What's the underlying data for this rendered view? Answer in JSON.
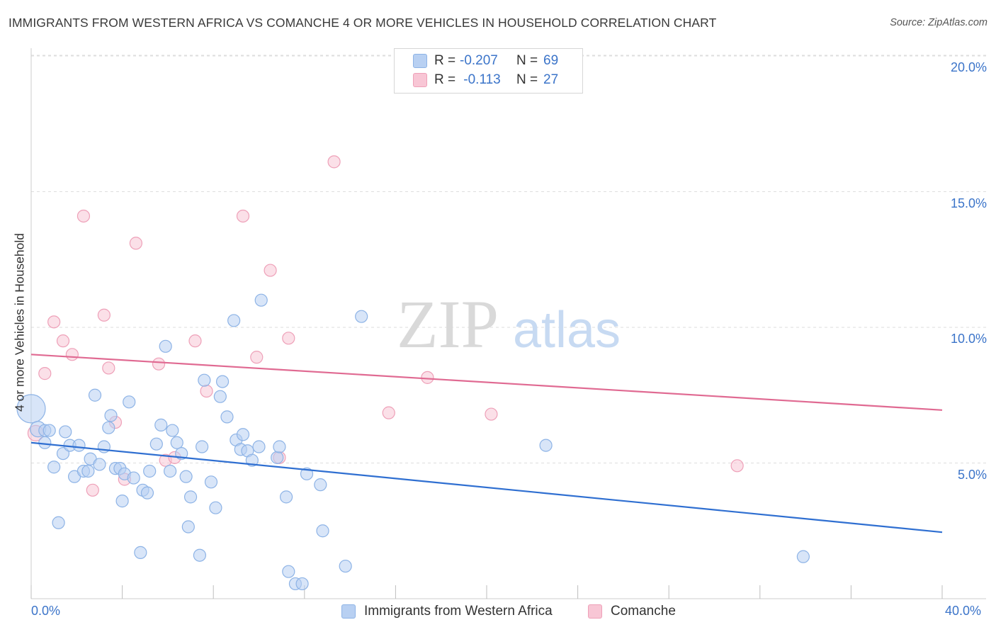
{
  "title": "IMMIGRANTS FROM WESTERN AFRICA VS COMANCHE 4 OR MORE VEHICLES IN HOUSEHOLD CORRELATION CHART",
  "source": "Source: ZipAtlas.com",
  "watermark": {
    "zip": "ZIP",
    "atlas": "atlas"
  },
  "legend": {
    "series1": {
      "r_label": "R = ",
      "r_value": "-0.207",
      "n_label": "N = ",
      "n_value": "69"
    },
    "series2": {
      "r_label": "R = ",
      "r_value": " -0.113",
      "n_label": "N = ",
      "n_value": "27"
    }
  },
  "colors": {
    "blue_fill": "#b8d0f2",
    "blue_stroke": "#8db3e6",
    "blue_line": "#2f6fd1",
    "pink_fill": "#f8c6d5",
    "pink_stroke": "#eea0b8",
    "pink_line": "#e06a92",
    "tick_text": "#3b74c9",
    "grid": "#dedede"
  },
  "chart_data": {
    "type": "scatter",
    "title": "IMMIGRANTS FROM WESTERN AFRICA VS COMANCHE 4 OR MORE VEHICLES IN HOUSEHOLD CORRELATION CHART",
    "xlabel": "",
    "ylabel": "4 or more Vehicles in Household",
    "xlim": [
      0,
      40
    ],
    "ylim": [
      0,
      20.5
    ],
    "x_tick_labels": [
      "0.0%",
      "40.0%"
    ],
    "y_ticks": [
      5,
      10,
      15,
      20
    ],
    "y_tick_labels": [
      "5.0%",
      "10.0%",
      "15.0%",
      "20.0%"
    ],
    "series": [
      {
        "name": "Immigrants from Western Africa",
        "color": "blue",
        "trend": [
          [
            0,
            5.75
          ],
          [
            40,
            2.45
          ]
        ],
        "points": [
          [
            0.0,
            7.0,
            3
          ],
          [
            0.3,
            6.25,
            2
          ],
          [
            0.6,
            6.2,
            1
          ],
          [
            0.8,
            6.2,
            1
          ],
          [
            0.6,
            5.75,
            1
          ],
          [
            1.5,
            6.15,
            1
          ],
          [
            1.0,
            4.85,
            1
          ],
          [
            1.4,
            5.35,
            1
          ],
          [
            1.7,
            5.65,
            1
          ],
          [
            2.1,
            5.65,
            1
          ],
          [
            1.9,
            4.5,
            1
          ],
          [
            2.3,
            4.7,
            1
          ],
          [
            2.5,
            4.7,
            1
          ],
          [
            2.6,
            5.15,
            1
          ],
          [
            2.8,
            7.5,
            1
          ],
          [
            3.0,
            4.95,
            1
          ],
          [
            3.2,
            5.6,
            1
          ],
          [
            3.4,
            6.3,
            1
          ],
          [
            3.5,
            6.75,
            1
          ],
          [
            3.7,
            4.8,
            1
          ],
          [
            3.9,
            4.8,
            1
          ],
          [
            4.1,
            4.6,
            1
          ],
          [
            4.3,
            7.25,
            1
          ],
          [
            4.5,
            4.45,
            1
          ],
          [
            4.0,
            3.6,
            1
          ],
          [
            4.9,
            4.0,
            1
          ],
          [
            5.1,
            3.9,
            1
          ],
          [
            5.2,
            4.7,
            1
          ],
          [
            5.5,
            5.7,
            1
          ],
          [
            5.7,
            6.4,
            1
          ],
          [
            5.9,
            9.3,
            1
          ],
          [
            6.1,
            4.7,
            1
          ],
          [
            6.2,
            6.2,
            1
          ],
          [
            6.4,
            5.75,
            1
          ],
          [
            6.6,
            5.35,
            1
          ],
          [
            6.8,
            4.5,
            1
          ],
          [
            7.0,
            3.75,
            1
          ],
          [
            7.5,
            5.6,
            1
          ],
          [
            7.6,
            8.05,
            1
          ],
          [
            7.9,
            4.3,
            1
          ],
          [
            8.1,
            3.35,
            1
          ],
          [
            8.3,
            7.45,
            1
          ],
          [
            8.4,
            8.0,
            1
          ],
          [
            8.6,
            6.7,
            1
          ],
          [
            8.9,
            10.25,
            1
          ],
          [
            9.0,
            5.85,
            1
          ],
          [
            9.2,
            5.5,
            1
          ],
          [
            9.3,
            6.05,
            1
          ],
          [
            9.5,
            5.45,
            1
          ],
          [
            9.7,
            5.1,
            1
          ],
          [
            10.0,
            5.6,
            1
          ],
          [
            10.1,
            11.0,
            1
          ],
          [
            10.8,
            5.2,
            1
          ],
          [
            10.9,
            5.6,
            1
          ],
          [
            11.2,
            3.75,
            1
          ],
          [
            11.3,
            1.0,
            1
          ],
          [
            11.6,
            0.55,
            1
          ],
          [
            11.9,
            0.55,
            1
          ],
          [
            12.1,
            4.6,
            1
          ],
          [
            12.7,
            4.2,
            1
          ],
          [
            12.8,
            2.5,
            1
          ],
          [
            13.8,
            1.2,
            1
          ],
          [
            14.5,
            10.4,
            1
          ],
          [
            22.6,
            5.65,
            1
          ],
          [
            33.9,
            1.55,
            1
          ],
          [
            1.2,
            2.8,
            1
          ],
          [
            4.8,
            1.7,
            1
          ],
          [
            6.9,
            2.65,
            1
          ],
          [
            7.4,
            1.6,
            1
          ]
        ]
      },
      {
        "name": "Comanche",
        "color": "pink",
        "trend": [
          [
            0,
            9.0
          ],
          [
            40,
            6.95
          ]
        ],
        "points": [
          [
            0.2,
            6.1,
            2
          ],
          [
            0.6,
            8.3,
            1
          ],
          [
            1.0,
            10.2,
            1
          ],
          [
            1.4,
            9.5,
            1
          ],
          [
            1.8,
            9.0,
            1
          ],
          [
            2.3,
            14.1,
            1
          ],
          [
            2.7,
            4.0,
            1
          ],
          [
            3.2,
            10.45,
            1
          ],
          [
            3.4,
            8.5,
            1
          ],
          [
            3.7,
            6.5,
            1
          ],
          [
            4.1,
            4.4,
            1
          ],
          [
            4.6,
            13.1,
            1
          ],
          [
            5.6,
            8.65,
            1
          ],
          [
            5.9,
            5.1,
            1
          ],
          [
            6.3,
            5.2,
            1
          ],
          [
            7.2,
            9.5,
            1
          ],
          [
            7.7,
            7.65,
            1
          ],
          [
            9.3,
            14.1,
            1
          ],
          [
            9.9,
            8.9,
            1
          ],
          [
            10.5,
            12.1,
            1
          ],
          [
            10.9,
            5.2,
            1
          ],
          [
            11.3,
            9.6,
            1
          ],
          [
            13.3,
            16.1,
            1
          ],
          [
            15.7,
            6.85,
            1
          ],
          [
            17.4,
            8.15,
            1
          ],
          [
            20.2,
            6.8,
            1
          ],
          [
            31.0,
            4.9,
            1
          ]
        ]
      }
    ]
  },
  "bottom_legend": {
    "series1": "Immigrants from Western Africa",
    "series2": "Comanche"
  }
}
